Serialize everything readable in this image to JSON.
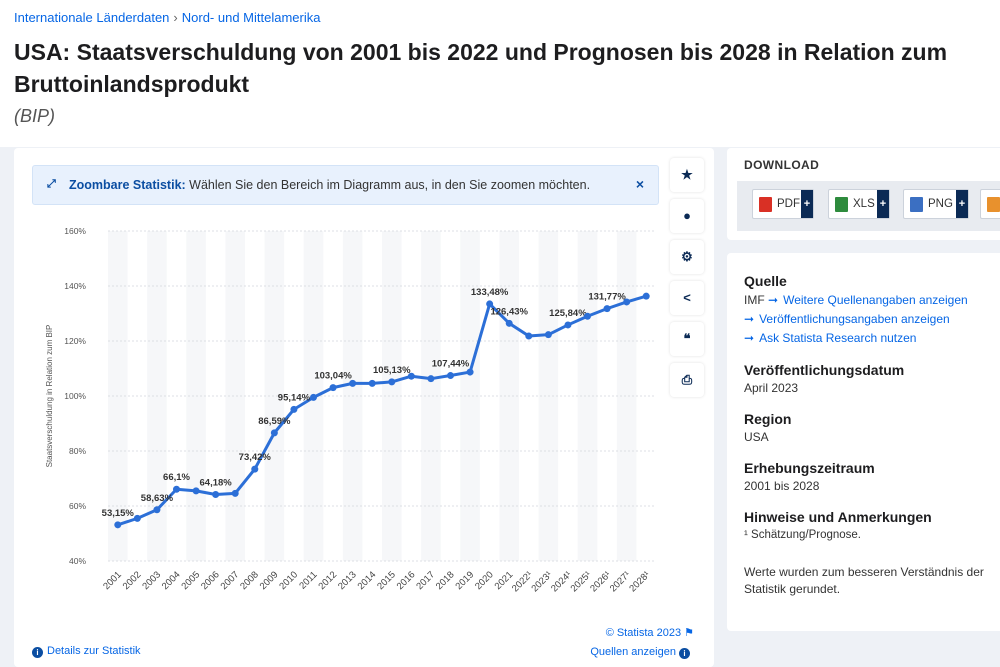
{
  "breadcrumb": {
    "item1": "Internationale Länderdaten",
    "sep": "›",
    "item2": "Nord- und Mittelamerika"
  },
  "title": "USA: Staatsverschuldung von 2001 bis 2022 und Prognosen bis 2028 in Relation zum Bruttoinlandsprodukt",
  "subtitle": "(BIP)",
  "zoom_banner": {
    "bold": "Zoombare Statistik:",
    "text": " Wählen Sie den Bereich im Diagramm aus, in den Sie zoomen möchten.",
    "close": "×"
  },
  "side_buttons": [
    "star-icon",
    "bell-icon",
    "gear-icon",
    "share-icon",
    "quote-icon",
    "print-icon"
  ],
  "footer": {
    "details": "Details zur Statistik",
    "copyright": "© Statista 2023",
    "sources": "Quellen anzeigen"
  },
  "download": {
    "title": "DOWNLOAD",
    "buttons": [
      {
        "label": "PDF",
        "color": "#d93025"
      },
      {
        "label": "XLS",
        "color": "#2e8b3d"
      },
      {
        "label": "PNG",
        "color": "#3b6fc2"
      }
    ],
    "plus": "+"
  },
  "info": {
    "source_h": "Quelle",
    "source_v": "IMF",
    "links": [
      "Weitere Quellenangaben anzeigen",
      "Veröffentlichungsangaben anzeigen",
      "Ask Statista Research nutzen"
    ],
    "pub_h": "Veröffentlichungsdatum",
    "pub_v": "April 2023",
    "region_h": "Region",
    "region_v": "USA",
    "period_h": "Erhebungszeitraum",
    "period_v": "2001 bis 2028",
    "notes_h": "Hinweise und Anmerkungen",
    "notes_v": "¹ Schätzung/Prognose.",
    "rounding": "Werte wurden zum besseren Verständnis der Statistik gerundet."
  },
  "chart_data": {
    "type": "line",
    "ylabel": "Staatsverschuldung in Relation zum BIP",
    "ylim": [
      40,
      160
    ],
    "yticks": [
      "40%",
      "60%",
      "80%",
      "100%",
      "120%",
      "140%",
      "160%"
    ],
    "categories": [
      "2001",
      "2002",
      "2003",
      "2004",
      "2005",
      "2006",
      "2007",
      "2008",
      "2009",
      "2010",
      "2011",
      "2012",
      "2013",
      "2014",
      "2015",
      "2016",
      "2017",
      "2018",
      "2019",
      "2020",
      "2021",
      "2022¹",
      "2023¹",
      "2024¹",
      "2025¹",
      "2026¹",
      "2027¹",
      "2028¹"
    ],
    "values": [
      53.15,
      55.5,
      58.63,
      66.1,
      65.5,
      64.18,
      64.6,
      73.42,
      86.59,
      95.14,
      99.5,
      103.04,
      104.6,
      104.6,
      105.13,
      107.2,
      106.3,
      107.44,
      108.7,
      133.48,
      126.43,
      121.8,
      122.3,
      125.84,
      129.0,
      131.77,
      134.2,
      136.3
    ],
    "labels": [
      "53,15%",
      "",
      "58,63%",
      "66,1%",
      "",
      "64,18%",
      "",
      "73,42%",
      "86,59%",
      "95,14%",
      "",
      "103,04%",
      "",
      "",
      "105,13%",
      "",
      "",
      "107,44%",
      "",
      "133,48%",
      "126,43%",
      "",
      "",
      "125,84%",
      "",
      "131,77%",
      "",
      ""
    ],
    "line_color": "#2c6fd7"
  }
}
